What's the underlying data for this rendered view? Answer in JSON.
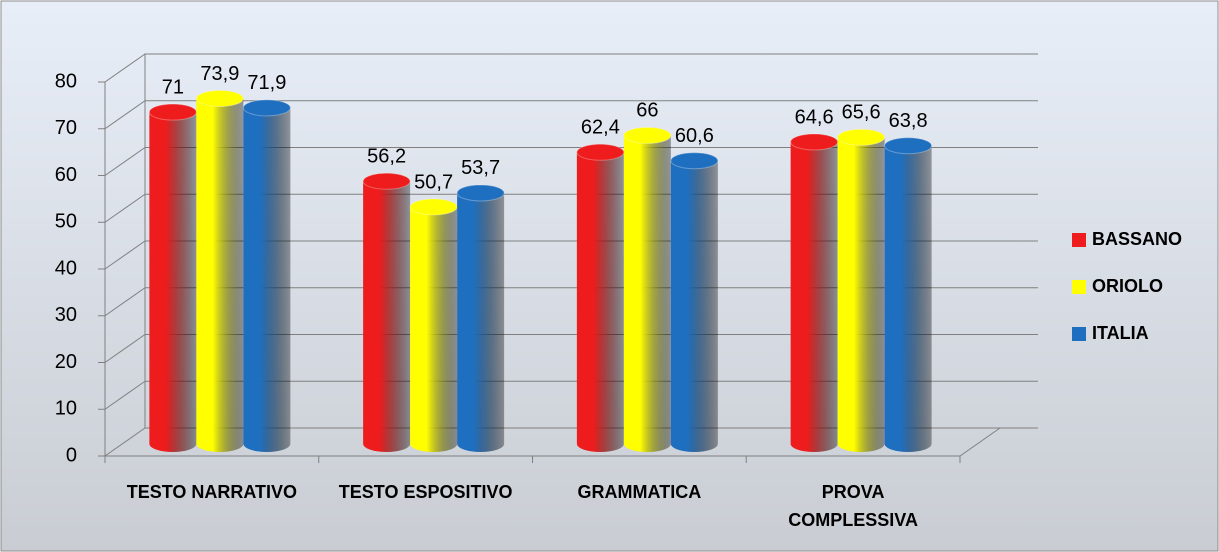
{
  "chart_data": {
    "type": "bar",
    "categories": [
      "TESTO NARRATIVO",
      "TESTO ESPOSITIVO",
      "GRAMMATICA",
      "PROVA COMPLESSIVA"
    ],
    "series": [
      {
        "name": "BASSANO",
        "color": "#ee1c1c",
        "values": [
          71,
          56.2,
          62.4,
          64.6
        ],
        "value_labels": [
          "71",
          "56,2",
          "62,4",
          "64,6"
        ]
      },
      {
        "name": "ORIOLO",
        "color": "#ffff00",
        "values": [
          73.9,
          50.7,
          66,
          65.6
        ],
        "value_labels": [
          "73,9",
          "50,7",
          "66",
          "65,6"
        ]
      },
      {
        "name": "ITALIA",
        "color": "#1f6fc0",
        "values": [
          71.9,
          53.7,
          60.6,
          63.8
        ],
        "value_labels": [
          "71,9",
          "53,7",
          "60,6",
          "63,8"
        ]
      }
    ],
    "ylim": [
      0,
      80
    ],
    "yticks": [
      0,
      10,
      20,
      30,
      40,
      50,
      60,
      70,
      80
    ],
    "grid": true,
    "legend": "right"
  }
}
